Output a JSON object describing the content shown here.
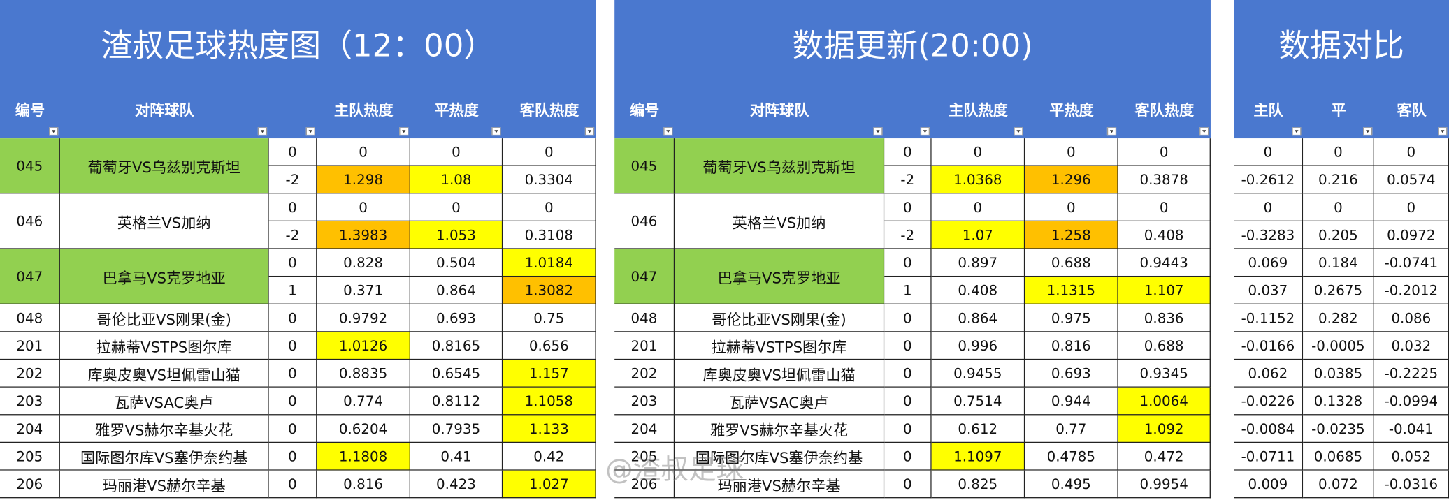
{
  "tables": [
    {
      "title": "渣叔足球热度图（12：00）",
      "headers": [
        "编号",
        "对阵球队",
        "主队热度",
        "平热度",
        "客队热度"
      ],
      "matches": [
        {
          "id": "045",
          "teams": "葡萄牙VS乌兹别克斯坦",
          "fill": "#92d050",
          "rows": [
            [
              "0",
              "0",
              "0",
              "0"
            ],
            [
              "-2",
              {
                "text": "1.298",
                "fill": "#ffc000"
              },
              {
                "text": "1.08",
                "fill": "#ffff00"
              },
              "0.3304"
            ]
          ]
        },
        {
          "id": "046",
          "teams": "英格兰VS加纳",
          "rows": [
            [
              "0",
              "0",
              "0",
              "0"
            ],
            [
              "-2",
              {
                "text": "1.3983",
                "fill": "#ffc000"
              },
              {
                "text": "1.053",
                "fill": "#ffff00"
              },
              "0.3108"
            ]
          ]
        },
        {
          "id": "047",
          "teams": "巴拿马VS克罗地亚",
          "fill": "#92d050",
          "rows": [
            [
              "0",
              "0.828",
              "0.504",
              {
                "text": "1.0184",
                "fill": "#ffff00"
              }
            ],
            [
              "1",
              "0.371",
              "0.864",
              {
                "text": "1.3082",
                "fill": "#ffc000"
              }
            ]
          ]
        },
        {
          "id": "048",
          "teams": "哥伦比亚VS刚果(金)",
          "rows": [
            [
              "0",
              "0.9792",
              "0.693",
              "0.75"
            ]
          ]
        },
        {
          "id": "201",
          "teams": "拉赫蒂VSTPS图尔库",
          "rows": [
            [
              "0",
              {
                "text": "1.0126",
                "fill": "#ffff00"
              },
              "0.8165",
              "0.656"
            ]
          ]
        },
        {
          "id": "202",
          "teams": "库奥皮奥VS坦佩雷山猫",
          "rows": [
            [
              "0",
              "0.8835",
              "0.6545",
              {
                "text": "1.157",
                "fill": "#ffff00"
              }
            ]
          ]
        },
        {
          "id": "203",
          "teams": "瓦萨VSAC奥卢",
          "rows": [
            [
              "0",
              "0.774",
              "0.8112",
              {
                "text": "1.1058",
                "fill": "#ffff00"
              }
            ]
          ]
        },
        {
          "id": "204",
          "teams": "雅罗VS赫尔辛基火花",
          "rows": [
            [
              "0",
              "0.6204",
              "0.7935",
              {
                "text": "1.133",
                "fill": "#ffff00"
              }
            ]
          ]
        },
        {
          "id": "205",
          "teams": "国际图尔库VS塞伊奈约基",
          "rows": [
            [
              "0",
              {
                "text": "1.1808",
                "fill": "#ffff00"
              },
              "0.41",
              "0.42"
            ]
          ]
        },
        {
          "id": "206",
          "teams": "玛丽港VS赫尔辛基",
          "rows": [
            [
              "0",
              "0.816",
              "0.423",
              {
                "text": "1.027",
                "fill": "#ffff00"
              }
            ]
          ]
        }
      ]
    },
    {
      "title": "数据更新(20:00)",
      "headers": [
        "编号",
        "对阵球队",
        "主队热度",
        "平热度",
        "客队热度"
      ],
      "matches": [
        {
          "id": "045",
          "teams": "葡萄牙VS乌兹别克斯坦",
          "fill": "#92d050",
          "rows": [
            [
              "0",
              "0",
              "0",
              "0"
            ],
            [
              "-2",
              {
                "text": "1.0368",
                "fill": "#ffff00"
              },
              {
                "text": "1.296",
                "fill": "#ffc000"
              },
              "0.3878"
            ]
          ]
        },
        {
          "id": "046",
          "teams": "英格兰VS加纳",
          "rows": [
            [
              "0",
              "0",
              "0",
              "0"
            ],
            [
              "-2",
              {
                "text": "1.07",
                "fill": "#ffff00"
              },
              {
                "text": "1.258",
                "fill": "#ffc000"
              },
              "0.408"
            ]
          ]
        },
        {
          "id": "047",
          "teams": "巴拿马VS克罗地亚",
          "fill": "#92d050",
          "rows": [
            [
              "0",
              "0.897",
              "0.688",
              "0.9443"
            ],
            [
              "1",
              "0.408",
              {
                "text": "1.1315",
                "fill": "#ffff00"
              },
              {
                "text": "1.107",
                "fill": "#ffff00"
              }
            ]
          ]
        },
        {
          "id": "048",
          "teams": "哥伦比亚VS刚果(金)",
          "rows": [
            [
              "0",
              "0.864",
              "0.975",
              "0.836"
            ]
          ]
        },
        {
          "id": "201",
          "teams": "拉赫蒂VSTPS图尔库",
          "rows": [
            [
              "0",
              "0.996",
              "0.816",
              "0.688"
            ]
          ]
        },
        {
          "id": "202",
          "teams": "库奥皮奥VS坦佩雷山猫",
          "rows": [
            [
              "0",
              "0.9455",
              "0.693",
              "0.9345"
            ]
          ]
        },
        {
          "id": "203",
          "teams": "瓦萨VSAC奥卢",
          "rows": [
            [
              "0",
              "0.7514",
              "0.944",
              {
                "text": "1.0064",
                "fill": "#ffff00"
              }
            ]
          ]
        },
        {
          "id": "204",
          "teams": "雅罗VS赫尔辛基火花",
          "rows": [
            [
              "0",
              "0.612",
              "0.77",
              {
                "text": "1.092",
                "fill": "#ffff00"
              }
            ]
          ]
        },
        {
          "id": "205",
          "teams": "国际图尔库VS塞伊奈约基",
          "rows": [
            [
              "0",
              {
                "text": "1.1097",
                "fill": "#ffff00"
              },
              "0.4785",
              "0.472"
            ]
          ]
        },
        {
          "id": "206",
          "teams": "玛丽港VS赫尔辛基",
          "rows": [
            [
              "0",
              "0.825",
              "0.495",
              "0.9954"
            ]
          ]
        }
      ]
    },
    {
      "title": "数据对比",
      "headers": [
        "主队",
        "平",
        "客队"
      ],
      "rows": [
        [
          "0",
          "0",
          "0"
        ],
        [
          "-0.2612",
          "0.216",
          "0.0574"
        ],
        [
          "0",
          "0",
          "0"
        ],
        [
          "-0.3283",
          "0.205",
          "0.0972"
        ],
        [
          "0.069",
          "0.184",
          "-0.0741"
        ],
        [
          "0.037",
          "0.2675",
          "-0.2012"
        ],
        [
          "-0.1152",
          "0.282",
          "0.086"
        ],
        [
          "-0.0166",
          "-0.0005",
          "0.032"
        ],
        [
          "0.062",
          "0.0385",
          "-0.2225"
        ],
        [
          "-0.0226",
          "0.1328",
          "-0.0994"
        ],
        [
          "-0.0084",
          "-0.0235",
          "-0.041"
        ],
        [
          "-0.0711",
          "0.0685",
          "0.052"
        ],
        [
          "0.009",
          "0.072",
          "-0.0316"
        ]
      ]
    }
  ],
  "watermark": "@渣叔足球"
}
